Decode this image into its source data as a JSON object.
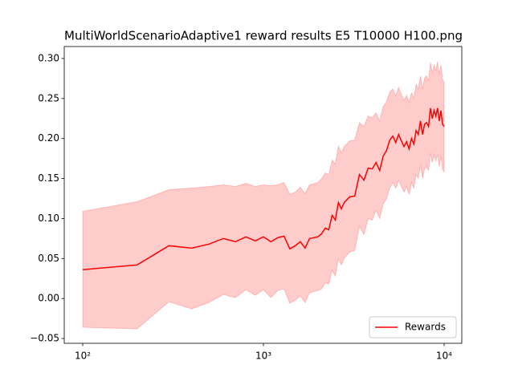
{
  "chart_data": {
    "type": "line",
    "title": "MultiWorldScenarioAdaptive1 reward results E5 T10000 H100.png",
    "x": [
      100,
      200,
      300,
      400,
      500,
      600,
      700,
      800,
      900,
      1000,
      1100,
      1200,
      1300,
      1400,
      1500,
      1600,
      1700,
      1800,
      2000,
      2100,
      2200,
      2300,
      2400,
      2500,
      2600,
      2700,
      2800,
      3000,
      3200,
      3400,
      3600,
      3800,
      4000,
      4200,
      4400,
      4600,
      4800,
      5000,
      5200,
      5400,
      5600,
      5800,
      6000,
      6200,
      6400,
      6600,
      6800,
      7000,
      7200,
      7400,
      7600,
      7800,
      8000,
      8200,
      8400,
      8600,
      8800,
      9000,
      9200,
      9400,
      9600,
      9800,
      10000
    ],
    "series": [
      {
        "name": "Rewards",
        "color": "#ff0000",
        "values": [
          0.036,
          0.042,
          0.066,
          0.063,
          0.068,
          0.075,
          0.071,
          0.077,
          0.072,
          0.077,
          0.071,
          0.076,
          0.078,
          0.062,
          0.066,
          0.071,
          0.063,
          0.075,
          0.077,
          0.081,
          0.088,
          0.086,
          0.104,
          0.098,
          0.12,
          0.112,
          0.12,
          0.127,
          0.128,
          0.155,
          0.148,
          0.163,
          0.162,
          0.17,
          0.16,
          0.178,
          0.185,
          0.198,
          0.203,
          0.195,
          0.205,
          0.197,
          0.19,
          0.196,
          0.187,
          0.2,
          0.193,
          0.21,
          0.205,
          0.222,
          0.205,
          0.218,
          0.22,
          0.215,
          0.238,
          0.225,
          0.235,
          0.228,
          0.238,
          0.222,
          0.235,
          0.218,
          0.215
        ]
      }
    ],
    "band": {
      "color": "#ff0000",
      "alpha": 0.2,
      "lower": [
        -0.036,
        -0.038,
        -0.004,
        -0.013,
        -0.005,
        0.005,
        0.001,
        0.011,
        0.004,
        0.011,
        0.001,
        0.01,
        0.012,
        -0.006,
        -0.002,
        0.003,
        -0.005,
        0.007,
        0.01,
        0.012,
        0.02,
        0.018,
        0.035,
        0.028,
        0.05,
        0.042,
        0.05,
        0.058,
        0.06,
        0.09,
        0.08,
        0.1,
        0.098,
        0.11,
        0.1,
        0.118,
        0.125,
        0.138,
        0.145,
        0.138,
        0.148,
        0.14,
        0.133,
        0.14,
        0.13,
        0.145,
        0.138,
        0.155,
        0.15,
        0.168,
        0.15,
        0.162,
        0.165,
        0.16,
        0.182,
        0.17,
        0.18,
        0.172,
        0.18,
        0.165,
        0.178,
        0.162,
        0.158
      ],
      "upper": [
        0.109,
        0.121,
        0.136,
        0.138,
        0.14,
        0.142,
        0.14,
        0.144,
        0.14,
        0.142,
        0.141,
        0.142,
        0.145,
        0.13,
        0.133,
        0.139,
        0.131,
        0.142,
        0.145,
        0.15,
        0.157,
        0.155,
        0.173,
        0.168,
        0.19,
        0.182,
        0.19,
        0.197,
        0.198,
        0.22,
        0.215,
        0.228,
        0.226,
        0.232,
        0.222,
        0.24,
        0.246,
        0.258,
        0.262,
        0.253,
        0.264,
        0.255,
        0.248,
        0.254,
        0.245,
        0.257,
        0.25,
        0.268,
        0.262,
        0.278,
        0.262,
        0.276,
        0.278,
        0.272,
        0.295,
        0.282,
        0.292,
        0.285,
        0.296,
        0.28,
        0.292,
        0.274,
        0.27
      ]
    },
    "xscale": "log",
    "xlim": [
      79,
      12530
    ],
    "ylim": [
      -0.056,
      0.315
    ],
    "xticks": [
      {
        "value": 100,
        "label": "10²"
      },
      {
        "value": 1000,
        "label": "10³"
      },
      {
        "value": 10000,
        "label": "10⁴"
      }
    ],
    "yticks": [
      {
        "value": -0.05,
        "label": "−0.05"
      },
      {
        "value": 0,
        "label": "0.00"
      },
      {
        "value": 0.05,
        "label": "0.05"
      },
      {
        "value": 0.1,
        "label": "0.10"
      },
      {
        "value": 0.15,
        "label": "0.15"
      },
      {
        "value": 0.2,
        "label": "0.20"
      },
      {
        "value": 0.25,
        "label": "0.25"
      },
      {
        "value": 0.3,
        "label": "0.30"
      }
    ],
    "legend": "lower right"
  }
}
